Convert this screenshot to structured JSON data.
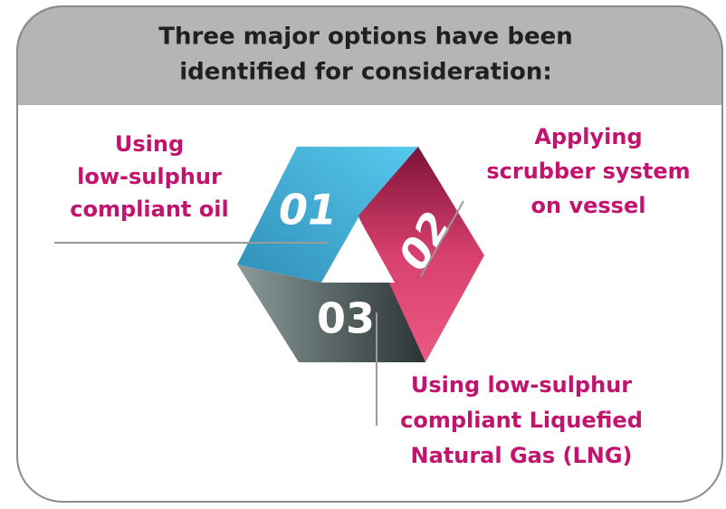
{
  "header": {
    "title": [
      "Three major options have been",
      "identified for consideration:"
    ]
  },
  "options": [
    {
      "number": "01",
      "label": [
        "Using",
        "low-sulphur",
        "compliant oil"
      ]
    },
    {
      "number": "02",
      "label": [
        "Applying",
        "scrubber system",
        "on vessel"
      ]
    },
    {
      "number": "03",
      "label": [
        "Using low-sulphur",
        "compliant Liquefied",
        "Natural Gas (LNG)"
      ]
    }
  ]
}
